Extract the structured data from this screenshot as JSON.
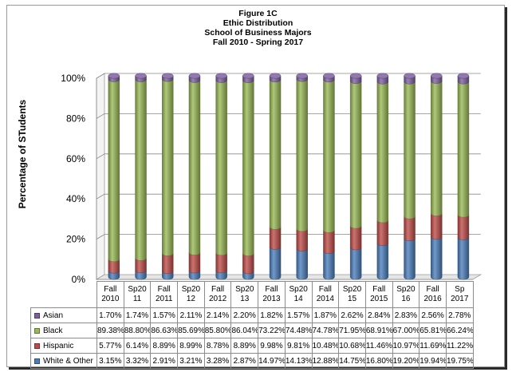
{
  "chart_data": {
    "type": "bar",
    "stacked": true,
    "title_lines": [
      "Figure 1C",
      "Ethic Distribution",
      "School of Business Majors",
      "Fall 2010 - Spring 2017"
    ],
    "ylabel": "Percentage of STudents",
    "ylim": [
      0,
      100
    ],
    "yticks": [
      "0%",
      "20%",
      "40%",
      "60%",
      "80%",
      "100%"
    ],
    "grid": true,
    "categories": [
      [
        "Fall",
        "2010"
      ],
      [
        "Sp20",
        "11"
      ],
      [
        "Fall",
        "2011"
      ],
      [
        "Sp20",
        "12"
      ],
      [
        "Fall",
        "2012"
      ],
      [
        "Sp20",
        "13"
      ],
      [
        "Fall",
        "2013"
      ],
      [
        "Sp20",
        "14"
      ],
      [
        "Fall",
        "2014"
      ],
      [
        "Sp20",
        "15"
      ],
      [
        "Fall",
        "2015"
      ],
      [
        "Sp20",
        "16"
      ],
      [
        "Fall",
        "2016"
      ],
      [
        "Sp",
        "2017"
      ]
    ],
    "series": [
      {
        "name": "White & Other",
        "color": "#4a7ebb",
        "values": [
          3.15,
          3.32,
          2.91,
          3.21,
          3.28,
          2.87,
          14.97,
          14.13,
          12.88,
          14.75,
          16.8,
          19.2,
          19.94,
          19.75
        ],
        "labels": [
          "3.15%",
          "3.32%",
          "2.91%",
          "3.21%",
          "3.28%",
          "2.87%",
          "14.97%",
          "14.13%",
          "12.88%",
          "14.75%",
          "16.80%",
          "19.20%",
          "19.94%",
          "19.75%"
        ]
      },
      {
        "name": "Hispanic",
        "color": "#be4b48",
        "values": [
          5.77,
          6.14,
          8.89,
          8.99,
          8.78,
          8.89,
          9.98,
          9.81,
          10.48,
          10.68,
          11.46,
          10.97,
          11.69,
          11.22
        ],
        "labels": [
          "5.77%",
          "6.14%",
          "8.89%",
          "8.99%",
          "8.78%",
          "8.89%",
          "9.98%",
          "9.81%",
          "10.48%",
          "10.68%",
          "11.46%",
          "10.97%",
          "11.69%",
          "11.22%"
        ]
      },
      {
        "name": "Black",
        "color": "#98b954",
        "values": [
          89.38,
          88.8,
          86.63,
          85.69,
          85.8,
          86.04,
          73.22,
          74.48,
          74.78,
          71.95,
          68.91,
          67.0,
          65.81,
          66.24
        ],
        "labels": [
          "89.38%",
          "88.80%",
          "86.63%",
          "85.69%",
          "85.80%",
          "86.04%",
          "73.22%",
          "74.48%",
          "74.78%",
          "71.95%",
          "68.91%",
          "67.00%",
          "65.81%",
          "66.24%"
        ]
      },
      {
        "name": "Asian",
        "color": "#7d60a0",
        "values": [
          1.7,
          1.74,
          1.57,
          2.11,
          2.14,
          2.2,
          1.82,
          1.57,
          1.87,
          2.62,
          2.84,
          2.83,
          2.56,
          2.78
        ],
        "labels": [
          "1.70%",
          "1.74%",
          "1.57%",
          "2.11%",
          "2.14%",
          "2.20%",
          "1.82%",
          "1.57%",
          "1.87%",
          "2.62%",
          "2.84%",
          "2.83%",
          "2.56%",
          "2.78%"
        ]
      }
    ],
    "table_row_order": [
      "Asian",
      "Black",
      "Hispanic",
      "White & Other"
    ]
  }
}
